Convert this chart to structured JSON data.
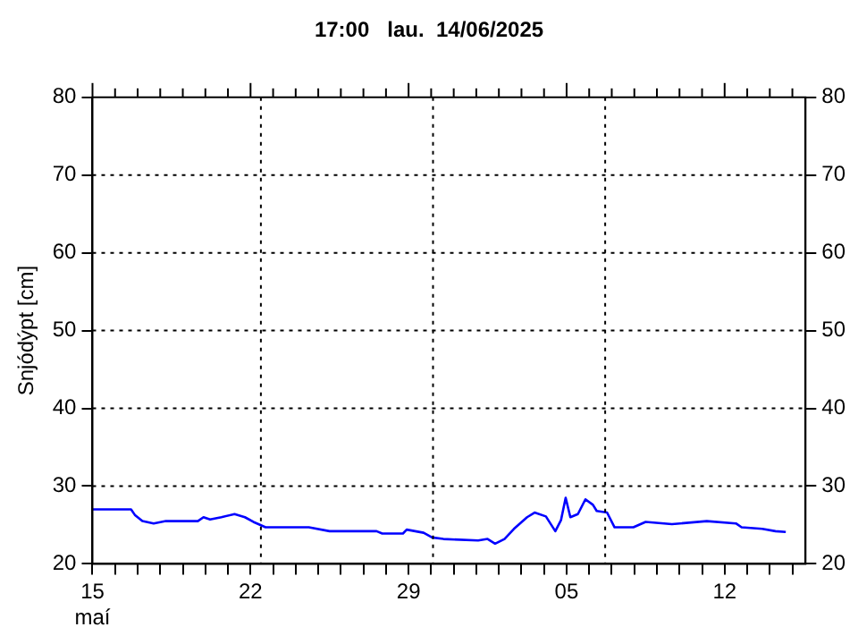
{
  "chart_data": {
    "type": "line",
    "title": "17:00   lau.  14/06/2025",
    "ylabel": "Snjódýpt [cm]",
    "x": [
      "2025-05-15T00:00",
      "2025-05-16T17:00",
      "2025-05-16T21:00",
      "2025-05-17T05:00",
      "2025-05-17T17:00",
      "2025-05-18T06:00",
      "2025-05-19T16:00",
      "2025-05-19T22:00",
      "2025-05-20T05:00",
      "2025-05-20T17:00",
      "2025-05-21T07:00",
      "2025-05-21T18:00",
      "2025-05-22T03:00",
      "2025-05-22T16:00",
      "2025-05-24T14:00",
      "2025-05-25T12:00",
      "2025-05-27T14:00",
      "2025-05-27T20:00",
      "2025-05-28T18:00",
      "2025-05-28T22:00",
      "2025-05-29T16:00",
      "2025-05-30T01:00",
      "2025-05-30T13:00",
      "2025-06-01T02:00",
      "2025-06-01T12:00",
      "2025-06-01T20:00",
      "2025-06-02T06:00",
      "2025-06-02T16:00",
      "2025-06-03T06:00",
      "2025-06-03T14:00",
      "2025-06-04T02:00",
      "2025-06-04T12:00",
      "2025-06-04T18:00",
      "2025-06-04T23:00",
      "2025-06-05T04:00",
      "2025-06-05T12:00",
      "2025-06-05T20:00",
      "2025-06-06T04:00",
      "2025-06-06T08:00",
      "2025-06-06T19:00",
      "2025-06-07T03:00",
      "2025-06-07T23:00",
      "2025-06-08T12:00",
      "2025-06-09T16:00",
      "2025-06-11T05:00",
      "2025-06-12T12:00",
      "2025-06-12T18:00",
      "2025-06-13T16:00",
      "2025-06-14T06:00",
      "2025-06-14T17:00"
    ],
    "series": [
      {
        "color": "#0000ff",
        "values": [
          27.0,
          27.0,
          26.3,
          25.5,
          25.2,
          25.5,
          25.5,
          26.0,
          25.7,
          26.0,
          26.4,
          26.0,
          25.4,
          24.7,
          24.7,
          24.2,
          24.2,
          23.9,
          23.9,
          24.4,
          24.0,
          23.4,
          23.2,
          23.0,
          23.2,
          22.6,
          23.2,
          24.5,
          26.0,
          26.6,
          26.1,
          24.2,
          25.6,
          28.5,
          26.0,
          26.4,
          28.3,
          27.6,
          26.8,
          26.6,
          24.7,
          24.7,
          25.4,
          25.1,
          25.5,
          25.2,
          24.7,
          24.5,
          24.2,
          24.1
        ]
      }
    ],
    "xlim": [
      "2025-05-15",
      "2025-06-15T14:00"
    ],
    "xticks": [
      {
        "value": "2025-05-15",
        "label": "15\nmaí"
      },
      {
        "value": "2025-05-16",
        "label": null
      },
      {
        "value": "2025-05-17",
        "label": null
      },
      {
        "value": "2025-05-18",
        "label": null
      },
      {
        "value": "2025-05-19",
        "label": null
      },
      {
        "value": "2025-05-20",
        "label": null
      },
      {
        "value": "2025-05-21",
        "label": null
      },
      {
        "value": "2025-05-22",
        "label": "22"
      },
      {
        "value": "2025-05-23",
        "label": null
      },
      {
        "value": "2025-05-24",
        "label": null
      },
      {
        "value": "2025-05-25",
        "label": null
      },
      {
        "value": "2025-05-26",
        "label": null
      },
      {
        "value": "2025-05-27",
        "label": null
      },
      {
        "value": "2025-05-28",
        "label": null
      },
      {
        "value": "2025-05-29",
        "label": "29"
      },
      {
        "value": "2025-05-30",
        "label": null
      },
      {
        "value": "2025-05-31",
        "label": null
      },
      {
        "value": "2025-06-01",
        "label": null
      },
      {
        "value": "2025-06-02",
        "label": null
      },
      {
        "value": "2025-06-03",
        "label": null
      },
      {
        "value": "2025-06-04",
        "label": null
      },
      {
        "value": "2025-06-05",
        "label": "05"
      },
      {
        "value": "2025-06-06",
        "label": null
      },
      {
        "value": "2025-06-07",
        "label": null
      },
      {
        "value": "2025-06-08",
        "label": null
      },
      {
        "value": "2025-06-09",
        "label": null
      },
      {
        "value": "2025-06-10",
        "label": null
      },
      {
        "value": "2025-06-11",
        "label": null
      },
      {
        "value": "2025-06-12",
        "label": "12"
      },
      {
        "value": "2025-06-13",
        "label": null
      },
      {
        "value": "2025-06-14",
        "label": null
      },
      {
        "value": "2025-06-15",
        "label": null
      }
    ],
    "ylim": [
      20,
      80
    ],
    "yticks": [
      20,
      30,
      40,
      50,
      60,
      70,
      80
    ],
    "y2lim": [
      20,
      80
    ],
    "y2ticks": [
      20,
      30,
      40,
      50,
      60,
      70,
      80
    ],
    "grid": "y",
    "ref_lines": [
      {
        "axis": "x",
        "value": "2025-05-22T11:00",
        "color": "#000000",
        "line_style": "dotted"
      },
      {
        "axis": "x",
        "value": "2025-05-30T02:00",
        "color": "#000000",
        "line_style": "dotted"
      },
      {
        "axis": "x",
        "value": "2025-06-06T17:00",
        "color": "#000000",
        "line_style": "dotted"
      }
    ]
  }
}
